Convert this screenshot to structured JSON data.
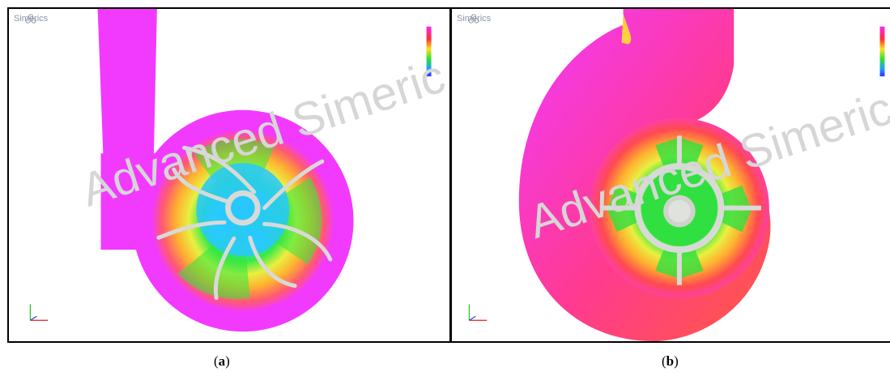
{
  "panels": [
    {
      "brand": "Simerics",
      "watermark": "Advanced Simeric",
      "caption_label": "a"
    },
    {
      "brand": "Simerics",
      "watermark": "Advanced Simeric Pipeline",
      "caption_label": "b"
    }
  ],
  "colors": {
    "volute": "#f23aff",
    "outer_ring": "#ff4a84",
    "hot": "#ffa020",
    "mid": "#ffe23a",
    "green": "#28e63a",
    "cyan": "#28c0ff",
    "blade": "#d8dad6"
  },
  "icons": [
    "simerics-logo-icon",
    "axis-triad-icon",
    "color-legend-bar"
  ]
}
